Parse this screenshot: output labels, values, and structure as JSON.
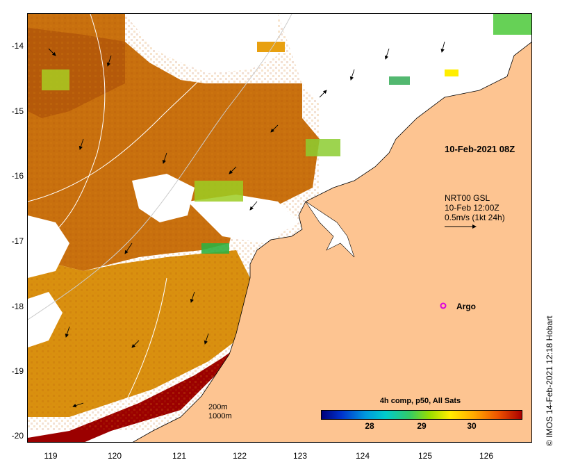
{
  "map": {
    "datetime_label": "10-Feb-2021 08Z",
    "current_legend": {
      "line1": "NRT00 GSL",
      "line2": "10-Feb 12:00Z",
      "line3": "0.5m/s (1kt 24h)"
    },
    "argo_label": "Argo",
    "credit": "© IMOS 14-Feb-2021 12:18 Hobart",
    "depth_contours": [
      "200m",
      "1000m"
    ],
    "colorbar": {
      "title": "4h comp, p50, All Sats",
      "ticks": [
        "28",
        "29",
        "30"
      ]
    },
    "lat_ticks": [
      "-14",
      "-15",
      "-16",
      "-17",
      "-18",
      "-19",
      "-20"
    ],
    "lon_ticks": [
      "119",
      "120",
      "121",
      "122",
      "123",
      "124",
      "125",
      "126"
    ],
    "colors": {
      "land": "#fdc491",
      "warm": "#c0600c",
      "hot": "#a00000",
      "mid": "#e8a010",
      "cool": "#7fcc30",
      "argo": "#dd00dd"
    }
  }
}
